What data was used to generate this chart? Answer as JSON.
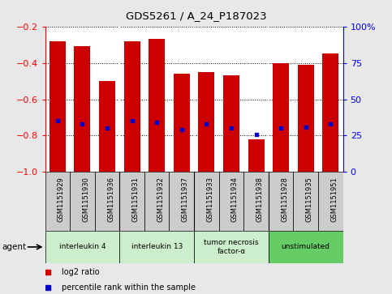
{
  "title": "GDS5261 / A_24_P187023",
  "samples": [
    "GSM1151929",
    "GSM1151930",
    "GSM1151936",
    "GSM1151931",
    "GSM1151932",
    "GSM1151937",
    "GSM1151933",
    "GSM1151934",
    "GSM1151938",
    "GSM1151928",
    "GSM1151935",
    "GSM1151951"
  ],
  "log2_ratio": [
    -0.28,
    -0.31,
    -0.5,
    -0.28,
    -0.27,
    -0.46,
    -0.45,
    -0.47,
    -0.82,
    -0.4,
    -0.41,
    -0.35
  ],
  "percentile_rank": [
    35,
    33,
    30,
    35,
    34,
    29,
    33,
    30,
    26,
    30,
    31,
    33
  ],
  "groups": [
    {
      "label": "interleukin 4",
      "start": 0,
      "end": 3,
      "color": "#cceecc"
    },
    {
      "label": "interleukin 13",
      "start": 3,
      "end": 6,
      "color": "#cceecc"
    },
    {
      "label": "tumor necrosis\nfactor-α",
      "start": 6,
      "end": 9,
      "color": "#cceecc"
    },
    {
      "label": "unstimulated",
      "start": 9,
      "end": 12,
      "color": "#66cc66"
    }
  ],
  "bar_color": "#cc0000",
  "marker_color": "#0000cc",
  "ylim_left": [
    -1.0,
    -0.2
  ],
  "ylim_right": [
    0,
    100
  ],
  "yticks_left": [
    -1.0,
    -0.8,
    -0.6,
    -0.4,
    -0.2
  ],
  "yticks_right": [
    0,
    25,
    50,
    75,
    100
  ],
  "ytick_labels_right": [
    "0",
    "25",
    "50",
    "75",
    "100%"
  ],
  "sample_box_color": "#cccccc",
  "background_color": "#e8e8e8",
  "plot_bg": "#ffffff",
  "legend_items": [
    {
      "label": "log2 ratio",
      "color": "#cc0000"
    },
    {
      "label": "percentile rank within the sample",
      "color": "#0000cc"
    }
  ]
}
